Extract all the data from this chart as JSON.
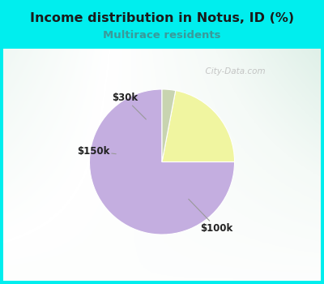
{
  "title": "Income distribution in Notus, ID (%)",
  "subtitle": "Multirace residents",
  "title_color": "#1a1a1a",
  "subtitle_color": "#3a9a9a",
  "background_outer": "#00EEEE",
  "watermark": "  City-Data.com",
  "slices": [
    {
      "label": "$100k",
      "value": 75,
      "color": "#c4aee0"
    },
    {
      "label": "$30k",
      "value": 22,
      "color": "#f0f5a0"
    },
    {
      "label": "$150k",
      "value": 3,
      "color": "#c8d4b0"
    }
  ],
  "pie_startangle": 90,
  "label_positions": {
    "$100k": [
      0.62,
      -0.75
    ],
    "$30k": [
      -0.42,
      0.72
    ],
    "$150k": [
      -0.78,
      0.12
    ]
  },
  "arrow_origins": {
    "$100k": [
      0.3,
      -0.42
    ],
    "$30k": [
      -0.18,
      0.48
    ],
    "$150k": [
      -0.52,
      0.09
    ]
  },
  "figsize": [
    4.0,
    3.5
  ],
  "dpi": 100
}
